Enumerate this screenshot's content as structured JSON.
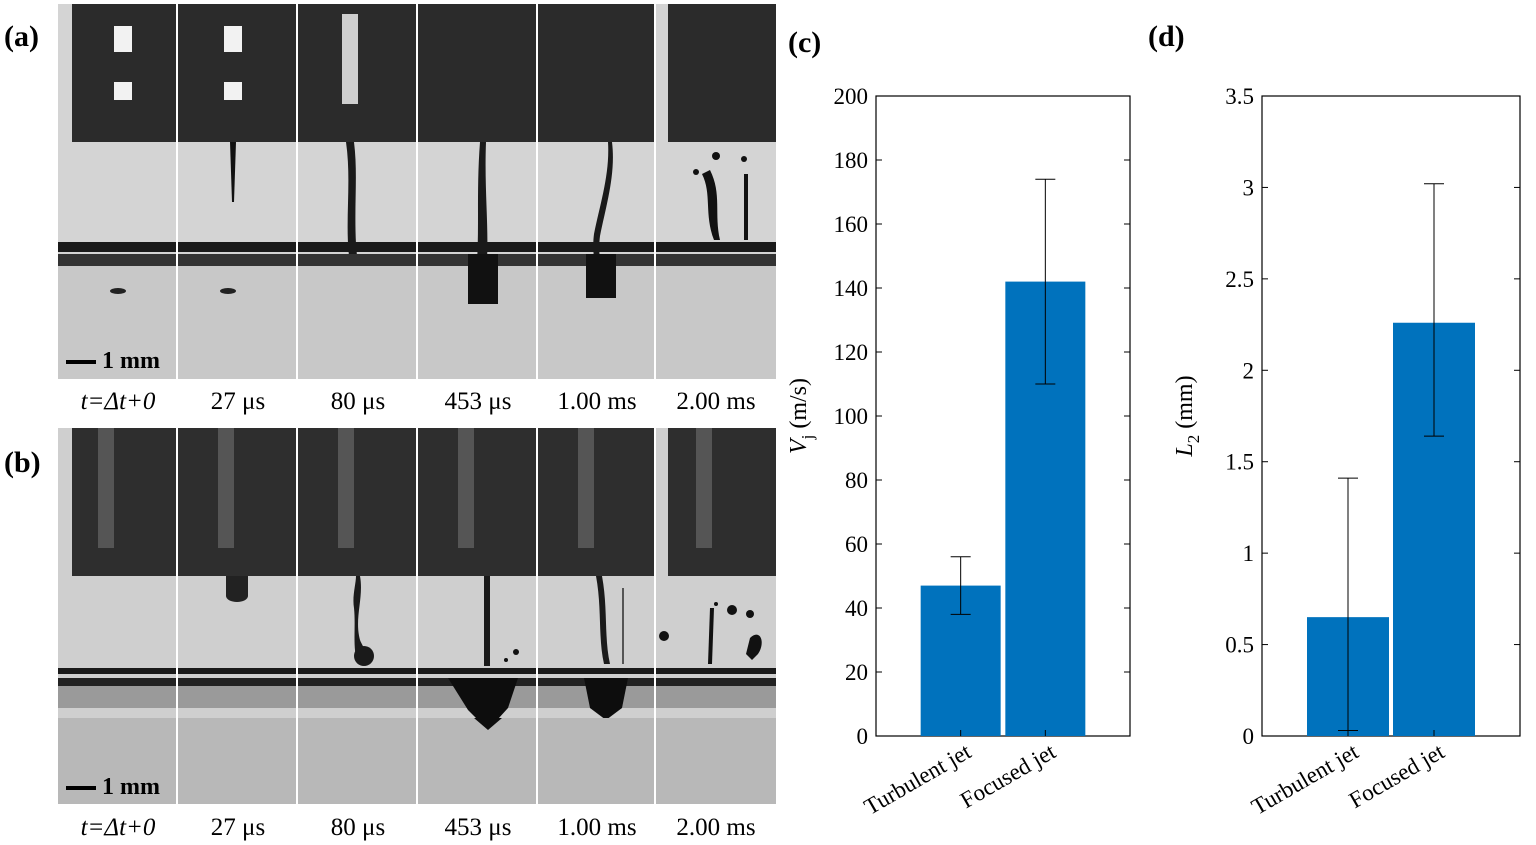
{
  "panels": {
    "a": {
      "letter": "(a)",
      "scale_label": "1 mm"
    },
    "b": {
      "letter": "(b)",
      "scale_label": "1 mm"
    },
    "c": {
      "letter": "(c)"
    },
    "d": {
      "letter": "(d)"
    }
  },
  "time_labels_prefix": "t",
  "time_labels": [
    "=Δt+0",
    "27 μs",
    "80 μs",
    "453 μs",
    "1.00 ms",
    "2.00 ms"
  ],
  "chart_data": [
    {
      "type": "bar",
      "panel": "(c)",
      "categories": [
        "Turbulent jet",
        "Focused jet"
      ],
      "values": [
        47,
        142
      ],
      "error_low": [
        38,
        110
      ],
      "error_high": [
        56,
        174
      ],
      "ylabel": "V_j (m/s)",
      "ylabel_main": "V",
      "ylabel_sub": "j",
      "ylabel_unit": " (m/s)",
      "ylim": [
        0,
        200
      ],
      "yticks": [
        0,
        20,
        40,
        60,
        80,
        100,
        120,
        140,
        160,
        180,
        200
      ],
      "ytick_labels": [
        "0",
        "20",
        "40",
        "60",
        "80",
        "100",
        "120",
        "140",
        "160",
        "180",
        "200"
      ],
      "bar_color": "#0072BD"
    },
    {
      "type": "bar",
      "panel": "(d)",
      "categories": [
        "Turbulent jet",
        "Focused jet"
      ],
      "values": [
        0.65,
        2.26
      ],
      "error_low": [
        0.03,
        1.64
      ],
      "error_high": [
        1.41,
        3.02
      ],
      "ylabel": "L_2 (mm)",
      "ylabel_main": "L",
      "ylabel_sub": "2",
      "ylabel_unit": " (mm)",
      "ylim": [
        0,
        3.5
      ],
      "yticks": [
        0,
        0.5,
        1,
        1.5,
        2,
        2.5,
        3,
        3.5
      ],
      "ytick_labels": [
        "0",
        "0.5",
        "1",
        "1.5",
        "2",
        "2.5",
        "3",
        "3.5"
      ],
      "bar_color": "#0072BD"
    }
  ]
}
